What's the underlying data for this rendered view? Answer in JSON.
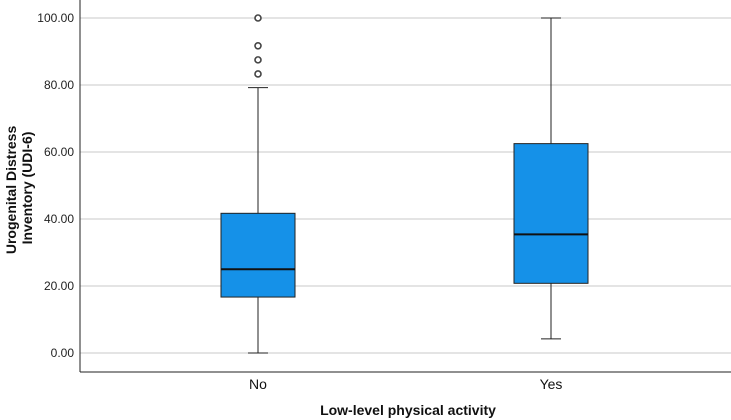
{
  "chart_data": {
    "type": "boxplot",
    "title": "",
    "xlabel": "Low-level physical activity",
    "ylabel_lines": [
      "Urogenital Distress",
      "Inventory (UDI-6)"
    ],
    "ylim": [
      0,
      100
    ],
    "yticks": [
      0,
      20,
      40,
      60,
      80,
      100
    ],
    "ytick_labels": [
      "0.00",
      "20.00",
      "40.00",
      "60.00",
      "80.00",
      "100.00"
    ],
    "grid": true,
    "colors": {
      "box_fill": "#1591e8",
      "stroke": "#222222",
      "grid": "#c8c8c8",
      "outlier": "#444444"
    },
    "categories": [
      "No",
      "Yes"
    ],
    "series": [
      {
        "name": "No",
        "min": 0,
        "q1": 16.7,
        "median": 25,
        "q3": 41.7,
        "max": 79.2,
        "outliers": [
          83.3,
          87.5,
          91.7,
          100
        ]
      },
      {
        "name": "Yes",
        "min": 4.2,
        "q1": 20.8,
        "median": 35.4,
        "q3": 62.5,
        "max": 100,
        "outliers": []
      }
    ]
  }
}
